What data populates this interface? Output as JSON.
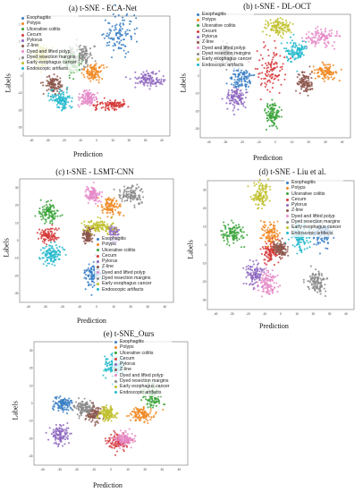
{
  "categories": [
    "Esophagitis",
    "Polyps",
    "Ulcerative colitis",
    "Cecum",
    "Pylorus",
    "Z-line",
    "Dyed and lifted polyp",
    "Dyed resection margins",
    "Early esophagus cancer",
    "Endoscopic artifacts"
  ],
  "colors": [
    "#3a7fc4",
    "#f08a24",
    "#3aa33a",
    "#d63b3b",
    "#8e67c0",
    "#8c564b",
    "#e58ac8",
    "#8a8a8a",
    "#bfc02c",
    "#22b8cc"
  ],
  "xlabel": "Prediction",
  "ylabel": "Labels",
  "chart_data": [
    {
      "type": "scatter",
      "title": "(a) t-SNE - ECA-Net",
      "xlabel": "Prediction",
      "ylabel": "Labels",
      "legend": "top-left",
      "series": [
        {
          "name": "Esophagitis",
          "center": [
            14,
            24
          ],
          "spread": [
            9,
            11
          ]
        },
        {
          "name": "Polyps",
          "center": [
            -2,
            2
          ],
          "spread": [
            6,
            4
          ]
        },
        {
          "name": "Ulcerative colitis",
          "center": [
            -15,
            8
          ],
          "spread": [
            6,
            7
          ]
        },
        {
          "name": "Cecum",
          "center": [
            9,
            -17
          ],
          "spread": [
            9,
            3
          ]
        },
        {
          "name": "Pylorus",
          "center": [
            32,
            -2
          ],
          "spread": [
            8,
            4
          ]
        },
        {
          "name": "Z-line",
          "center": [
            -26,
            -5
          ],
          "spread": [
            5,
            5
          ]
        },
        {
          "name": "Dyed and lifted polyp",
          "center": [
            -5,
            -13
          ],
          "spread": [
            5,
            4
          ]
        },
        {
          "name": "Dyed resection margins",
          "center": [
            -10,
            12
          ],
          "spread": [
            6,
            6
          ]
        },
        {
          "name": "Early esophagus cancer",
          "center": [
            -34,
            12
          ],
          "spread": [
            5,
            6
          ]
        },
        {
          "name": "Endoscopic artifacts",
          "center": [
            -22,
            -14
          ],
          "spread": [
            7,
            5
          ]
        }
      ]
    },
    {
      "type": "scatter",
      "title": "(b) t-SNE - DL-OCT",
      "xlabel": "Prediction",
      "ylabel": "Labels",
      "legend": "top-left",
      "series": [
        {
          "name": "Esophagitis",
          "center": [
            -20,
            -2
          ],
          "spread": [
            6,
            5
          ]
        },
        {
          "name": "Polyps",
          "center": [
            30,
            2
          ],
          "spread": [
            6,
            4
          ]
        },
        {
          "name": "Ulcerative colitis",
          "center": [
            -2,
            -22
          ],
          "spread": [
            4,
            6
          ]
        },
        {
          "name": "Cecum",
          "center": [
            -2,
            3
          ],
          "spread": [
            7,
            11
          ]
        },
        {
          "name": "Pylorus",
          "center": [
            -24,
            -12
          ],
          "spread": [
            5,
            5
          ]
        },
        {
          "name": "Z-line",
          "center": [
            18,
            -4
          ],
          "spread": [
            4,
            5
          ]
        },
        {
          "name": "Dyed and lifted polyp",
          "center": [
            26,
            22
          ],
          "spread": [
            9,
            5
          ]
        },
        {
          "name": "Dyed resection margins",
          "center": [
            -30,
            12
          ],
          "spread": [
            5,
            5
          ]
        },
        {
          "name": "Early esophagus cancer",
          "center": [
            2,
            28
          ],
          "spread": [
            7,
            5
          ]
        },
        {
          "name": "Endoscopic artifacts",
          "center": [
            12,
            14
          ],
          "spread": [
            6,
            6
          ]
        }
      ]
    },
    {
      "type": "scatter",
      "title": "(c) t-SNE - LSMT-CNN",
      "xlabel": "Prediction",
      "ylabel": "Labels",
      "legend": "center-right",
      "series": [
        {
          "name": "Esophagitis",
          "center": [
            -2,
            -19
          ],
          "spread": [
            5,
            7
          ]
        },
        {
          "name": "Polyps",
          "center": [
            8,
            19
          ],
          "spread": [
            5,
            5
          ]
        },
        {
          "name": "Ulcerative colitis",
          "center": [
            -28,
            16
          ],
          "spread": [
            5,
            5
          ]
        },
        {
          "name": "Cecum",
          "center": [
            -28,
            3
          ],
          "spread": [
            5,
            4
          ]
        },
        {
          "name": "Pylorus",
          "center": [
            10,
            3
          ],
          "spread": [
            3,
            4
          ]
        },
        {
          "name": "Z-line",
          "center": [
            -5,
            3
          ],
          "spread": [
            3,
            4
          ]
        },
        {
          "name": "Dyed and lifted polyp",
          "center": [
            -2,
            26
          ],
          "spread": [
            4,
            4
          ]
        },
        {
          "name": "Dyed resection margins",
          "center": [
            20,
            26
          ],
          "spread": [
            6,
            5
          ]
        },
        {
          "name": "Early esophagus cancer",
          "center": [
            2,
            8
          ],
          "spread": [
            8,
            3
          ]
        },
        {
          "name": "Endoscopic artifacts",
          "center": [
            -26,
            -8
          ],
          "spread": [
            6,
            5
          ]
        }
      ]
    },
    {
      "type": "scatter",
      "title": "(d) t-SNE - Liu et al.",
      "xlabel": "Prediction",
      "ylabel": "Labels",
      "legend": "top-right",
      "series": [
        {
          "name": "Esophagitis",
          "center": [
            26,
            6
          ],
          "spread": [
            6,
            6
          ]
        },
        {
          "name": "Polyps",
          "center": [
            -6,
            6
          ],
          "spread": [
            5,
            6
          ]
        },
        {
          "name": "Ulcerative colitis",
          "center": [
            -30,
            6
          ],
          "spread": [
            6,
            5
          ]
        },
        {
          "name": "Cecum",
          "center": [
            -6,
            -4
          ],
          "spread": [
            5,
            5
          ]
        },
        {
          "name": "Pylorus",
          "center": [
            -16,
            -16
          ],
          "spread": [
            5,
            6
          ]
        },
        {
          "name": "Z-line",
          "center": [
            0,
            -2
          ],
          "spread": [
            4,
            4
          ]
        },
        {
          "name": "Dyed and lifted polyp",
          "center": [
            -8,
            -20
          ],
          "spread": [
            6,
            7
          ]
        },
        {
          "name": "Dyed resection margins",
          "center": [
            22,
            -20
          ],
          "spread": [
            5,
            5
          ]
        },
        {
          "name": "Early esophagus cancer",
          "center": [
            -12,
            28
          ],
          "spread": [
            5,
            6
          ]
        },
        {
          "name": "Endoscopic artifacts",
          "center": [
            12,
            4
          ],
          "spread": [
            5,
            7
          ]
        }
      ]
    },
    {
      "type": "scatter",
      "title": "(e) t-SNE_Ours",
      "xlabel": "Prediction",
      "ylabel": "Labels",
      "legend": "top-right",
      "series": [
        {
          "name": "Esophagitis",
          "center": [
            -28,
            0
          ],
          "spread": [
            5,
            4
          ]
        },
        {
          "name": "Polyps",
          "center": [
            18,
            -6
          ],
          "spread": [
            6,
            4
          ]
        },
        {
          "name": "Ulcerative colitis",
          "center": [
            24,
            4
          ],
          "spread": [
            5,
            6
          ]
        },
        {
          "name": "Cecum",
          "center": [
            4,
            -22
          ],
          "spread": [
            6,
            4
          ]
        },
        {
          "name": "Pylorus",
          "center": [
            -30,
            -18
          ],
          "spread": [
            5,
            5
          ]
        },
        {
          "name": "Z-line",
          "center": [
            -10,
            -6
          ],
          "spread": [
            4,
            4
          ]
        },
        {
          "name": "Dyed and lifted polyp",
          "center": [
            8,
            -20
          ],
          "spread": [
            5,
            4
          ]
        },
        {
          "name": "Dyed resection margins",
          "center": [
            -16,
            -2
          ],
          "spread": [
            5,
            4
          ]
        },
        {
          "name": "Early esophagus cancer",
          "center": [
            -2,
            -6
          ],
          "spread": [
            4,
            4
          ]
        },
        {
          "name": "Endoscopic artifacts",
          "center": [
            2,
            22
          ],
          "spread": [
            5,
            6
          ]
        }
      ]
    }
  ]
}
